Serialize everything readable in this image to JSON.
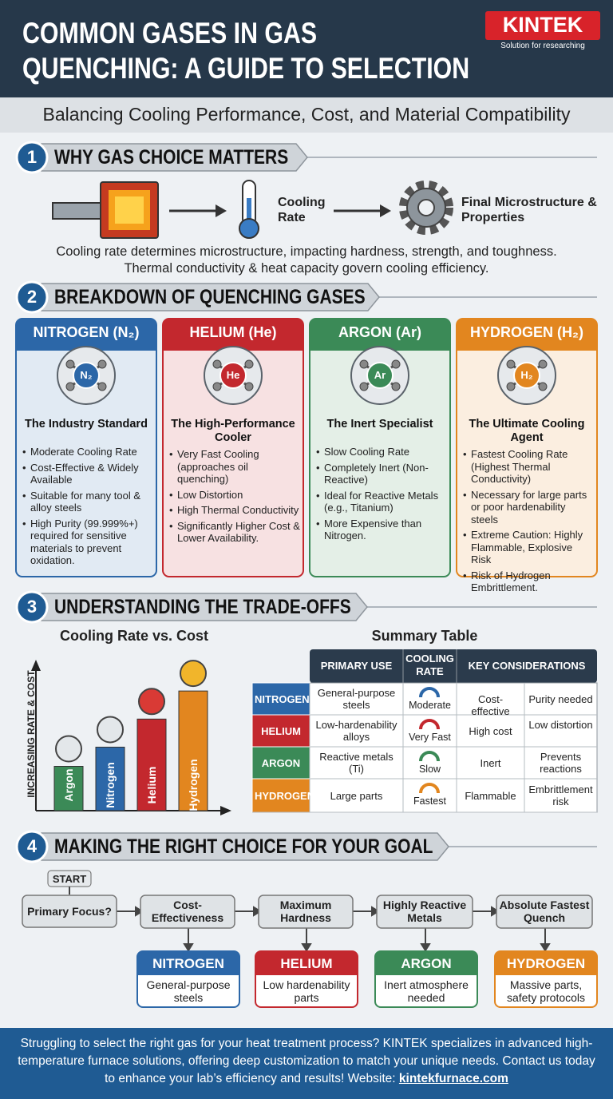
{
  "header": {
    "title": [
      "COMMON GASES IN GAS",
      "QUENCHING: A GUIDE TO SELECTION"
    ],
    "brand": "KINTEK",
    "tagline": "Solution for researching"
  },
  "subtitle": "Balancing Cooling Performance, Cost, and Material Compatibility",
  "sections": [
    {
      "number": "1",
      "title": "WHY GAS CHOICE MATTERS"
    },
    {
      "number": "2",
      "title": "BREAKDOWN OF QUENCHING GASES"
    },
    {
      "number": "3",
      "title": "UNDERSTANDING THE TRADE-OFFS"
    },
    {
      "number": "4",
      "title": "MAKING THE RIGHT CHOICE FOR YOUR GOAL"
    }
  ],
  "why": {
    "steps": [
      "Cooling Rate",
      "Final Microstructure & Properties"
    ],
    "text": [
      "Cooling rate determines microstructure, impacting hardness, strength, and toughness.",
      "Thermal conductivity & heat capacity govern cooling efficiency."
    ]
  },
  "gases": [
    {
      "name": "NITROGEN (N₂)",
      "symbol": "N₂",
      "color": "#2c67a8",
      "role": "The Industry Standard",
      "points": [
        "Moderate Cooling Rate",
        "Cost-Effective & Widely Available",
        "Suitable for many tool & alloy steels",
        "High Purity (99.999%+) required for sensitive materials to prevent oxidation."
      ]
    },
    {
      "name": "HELIUM (He)",
      "symbol": "He",
      "color": "#c3282e",
      "role": "The High-Performance Cooler",
      "points": [
        "Very Fast Cooling (approaches oil quenching)",
        "Low Distortion",
        "High Thermal Conductivity",
        "Significantly Higher Cost & Lower Availability."
      ]
    },
    {
      "name": "ARGON (Ar)",
      "symbol": "Ar",
      "color": "#3b8a57",
      "role": "The Inert Specialist",
      "points": [
        "Slow Cooling Rate",
        "Completely Inert (Non-Reactive)",
        "Ideal for Reactive Metals (e.g., Titanium)",
        "More Expensive than Nitrogen."
      ]
    },
    {
      "name": "HYDROGEN (H₂)",
      "symbol": "H₂",
      "color": "#e2861f",
      "role": "The Ultimate Cooling Agent",
      "points": [
        "Fastest Cooling Rate (Highest Thermal Conductivity)",
        "Necessary for large parts or poor hardenability steels",
        "Extreme Caution: Highly Flammable, Explosive Risk",
        "Risk of Hydrogen Embrittlement."
      ]
    }
  ],
  "chart": {
    "title": "Cooling Rate vs. Cost",
    "y_label": "INCREASING RATE & COST",
    "categories": [
      "Argon",
      "Nitrogen",
      "Helium",
      "Hydrogen"
    ],
    "values": [
      30,
      43,
      62,
      81
    ],
    "ylim": [
      0,
      100
    ],
    "colors": [
      "#3b8a57",
      "#2c67a8",
      "#c3282e",
      "#e2861f"
    ]
  },
  "table": {
    "title": "Summary Table",
    "columns": [
      "PRIMARY USE",
      "COOLING RATE",
      "KEY CONSIDERATIONS"
    ],
    "rows": [
      [
        "NITROGEN",
        "General-purpose steels",
        "Moderate",
        "Cost-effective",
        "Purity needed"
      ],
      [
        "HELIUM",
        "Low-hardenability alloys",
        "Very Fast",
        "High cost",
        "Low distortion"
      ],
      [
        "ARGON",
        "Reactive metals (Ti)",
        "Slow",
        "Inert",
        "Prevents reactions"
      ],
      [
        "HYDROGEN",
        "Large parts",
        "Fastest",
        "Flammable",
        "Embrittlement risk"
      ]
    ]
  },
  "flow": {
    "start": "START",
    "question": "Primary Focus?",
    "choices": [
      {
        "focus": "Cost-Effectiveness",
        "gas": "NITROGEN",
        "note": "General-purpose steels"
      },
      {
        "focus": "Maximum Hardness",
        "gas": "HELIUM",
        "note": "Low hardenability parts"
      },
      {
        "focus": "Highly Reactive Metals",
        "gas": "ARGON",
        "note": "Inert atmosphere needed"
      },
      {
        "focus": "Absolute Fastest Quench",
        "gas": "HYDROGEN",
        "note": "Massive parts, safety protocols"
      }
    ]
  },
  "footer": {
    "text": "Struggling to select the right gas for your heat treatment process? KINTEK specializes in advanced high-temperature furnace solutions, offering deep customization to match your unique needs. Contact us today to enhance your lab’s efficiency and results! Website:",
    "link": "kintekfurnace.com"
  }
}
